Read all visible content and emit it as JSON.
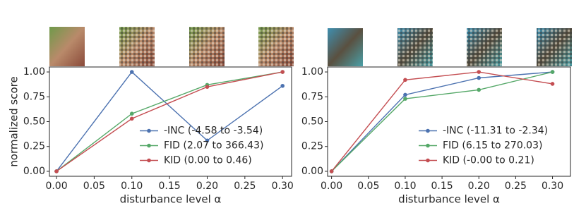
{
  "chart_data": [
    {
      "type": "line",
      "xlabel": "disturbance level α",
      "ylabel": "normalized score",
      "x": [
        0,
        0.1,
        0.2,
        0.3
      ],
      "series": [
        {
          "name": "-INC (-4.58 to -3.54)",
          "color": "#4c72b0",
          "values": [
            0,
            1.0,
            0.31,
            0.86
          ]
        },
        {
          "name": "FID (2.07 to 366.43)",
          "color": "#55a868",
          "values": [
            0,
            0.58,
            0.87,
            1.0
          ]
        },
        {
          "name": "KID (0.00 to 0.46)",
          "color": "#c44e52",
          "values": [
            0,
            0.53,
            0.85,
            1.0
          ]
        }
      ],
      "xlim": [
        -0.0094,
        0.312
      ],
      "ylim": [
        -0.05,
        1.05
      ],
      "xticks": [
        {
          "value": 0,
          "label": "0.00"
        },
        {
          "value": 0.05,
          "label": "0.05"
        },
        {
          "value": 0.1,
          "label": "0.10"
        },
        {
          "value": 0.15,
          "label": "0.15"
        },
        {
          "value": 0.2,
          "label": "0.20"
        },
        {
          "value": 0.25,
          "label": "0.25"
        },
        {
          "value": 0.3,
          "label": "0.30"
        }
      ],
      "yticks": [
        {
          "value": 0,
          "label": "0.00"
        },
        {
          "value": 0.25,
          "label": "0.25"
        },
        {
          "value": 0.5,
          "label": "0.50"
        },
        {
          "value": 0.75,
          "label": "0.75"
        },
        {
          "value": 1,
          "label": "1.00"
        }
      ],
      "legend": "lower right"
    },
    {
      "type": "line",
      "xlabel": "disturbance level α",
      "x": [
        0,
        0.1,
        0.2,
        0.3
      ],
      "series": [
        {
          "name": "-INC (-11.31 to -2.34)",
          "color": "#4c72b0",
          "values": [
            0,
            0.77,
            0.94,
            1.0
          ]
        },
        {
          "name": "FID (6.15 to 270.03)",
          "color": "#55a868",
          "values": [
            0,
            0.73,
            0.82,
            1.0
          ]
        },
        {
          "name": "KID (-0.00 to 0.21)",
          "color": "#c44e52",
          "values": [
            0,
            0.92,
            1.0,
            0.88
          ]
        }
      ],
      "xlim": [
        -0.0054,
        0.3244
      ],
      "ylim": [
        -0.05,
        1.05
      ],
      "xticks": [
        {
          "value": 0,
          "label": "0.00"
        },
        {
          "value": 0.05,
          "label": "0.05"
        },
        {
          "value": 0.1,
          "label": "0.10"
        },
        {
          "value": 0.15,
          "label": "0.15"
        },
        {
          "value": 0.2,
          "label": "0.20"
        },
        {
          "value": 0.25,
          "label": "0.25"
        },
        {
          "value": 0.3,
          "label": "0.30"
        }
      ],
      "yticks": [
        {
          "value": 0,
          "label": "0.00"
        },
        {
          "value": 0.25,
          "label": "0.25"
        },
        {
          "value": 0.5,
          "label": "0.50"
        },
        {
          "value": 0.75,
          "label": "0.75"
        },
        {
          "value": 1,
          "label": "1.00"
        }
      ],
      "legend": "lower right"
    }
  ]
}
